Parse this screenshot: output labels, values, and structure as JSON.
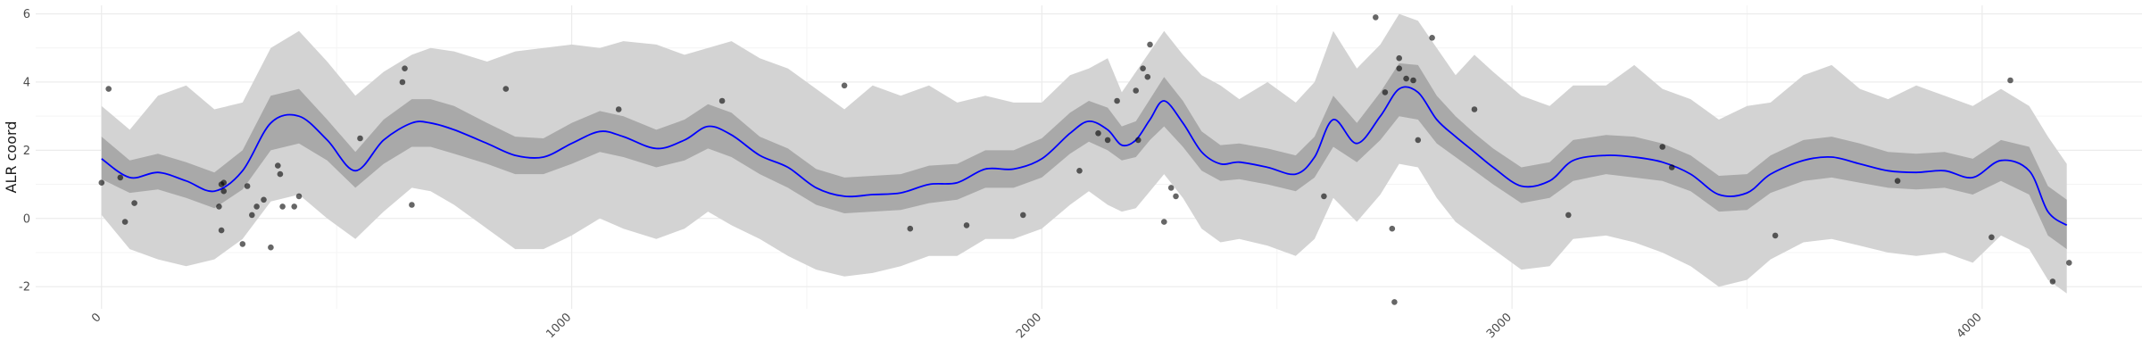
{
  "chart_data": {
    "type": "line",
    "title": "",
    "xlabel": "",
    "ylabel": "ALR coord",
    "xlim": [
      -140,
      4340
    ],
    "ylim": [
      -2.65,
      6.25
    ],
    "x_ticks": [
      0,
      1000,
      2000,
      3000,
      4000
    ],
    "x_tick_labels": [
      "0",
      "1000",
      "2000",
      "3000",
      "4000"
    ],
    "y_ticks": [
      -2,
      0,
      2,
      4,
      6
    ],
    "y_tick_labels": [
      "-2",
      "0",
      "2",
      "4",
      "6"
    ],
    "x_minor_ticks": [
      500,
      1500,
      2500,
      3500
    ],
    "y_minor_ticks": [
      -1,
      1,
      3,
      5
    ],
    "grid": true,
    "legend": "none",
    "colors": {
      "line": "#0000ff",
      "inner_band": "#a9a9a9",
      "outer_band": "#d3d3d3",
      "points": "#000000",
      "grid_major": "#ebebeb",
      "grid_minor": "#f4f4f4"
    },
    "series": [
      {
        "kind": "smooth_line",
        "x": [
          0,
          60,
          120,
          180,
          240,
          300,
          360,
          420,
          480,
          540,
          600,
          660,
          700,
          750,
          820,
          880,
          940,
          1000,
          1060,
          1110,
          1180,
          1240,
          1290,
          1340,
          1400,
          1460,
          1520,
          1580,
          1640,
          1700,
          1760,
          1820,
          1880,
          1940,
          2000,
          2060,
          2100,
          2140,
          2170,
          2200,
          2230,
          2260,
          2300,
          2340,
          2380,
          2420,
          2480,
          2540,
          2580,
          2620,
          2670,
          2720,
          2760,
          2800,
          2840,
          2880,
          2920,
          2960,
          3020,
          3080,
          3130,
          3200,
          3260,
          3320,
          3380,
          3440,
          3500,
          3550,
          3620,
          3680,
          3740,
          3800,
          3860,
          3920,
          3980,
          4040,
          4100,
          4140,
          4180
        ],
        "y": [
          1.75,
          1.2,
          1.35,
          1.1,
          0.8,
          1.4,
          2.8,
          3.0,
          2.3,
          1.4,
          2.3,
          2.8,
          2.8,
          2.6,
          2.2,
          1.85,
          1.8,
          2.2,
          2.55,
          2.4,
          2.05,
          2.3,
          2.7,
          2.45,
          1.85,
          1.5,
          0.9,
          0.65,
          0.7,
          0.75,
          1.0,
          1.05,
          1.45,
          1.45,
          1.75,
          2.5,
          2.85,
          2.6,
          2.15,
          2.3,
          2.9,
          3.45,
          2.8,
          1.95,
          1.6,
          1.65,
          1.5,
          1.3,
          1.8,
          2.9,
          2.2,
          3.0,
          3.8,
          3.7,
          2.9,
          2.4,
          1.95,
          1.5,
          0.95,
          1.1,
          1.7,
          1.85,
          1.8,
          1.65,
          1.3,
          0.7,
          0.75,
          1.3,
          1.7,
          1.8,
          1.6,
          1.4,
          1.35,
          1.4,
          1.2,
          1.7,
          1.4,
          0.2,
          -0.2
        ]
      },
      {
        "kind": "inner_band",
        "x": [
          0,
          60,
          120,
          180,
          240,
          300,
          360,
          420,
          480,
          540,
          600,
          660,
          700,
          750,
          820,
          880,
          940,
          1000,
          1060,
          1110,
          1180,
          1240,
          1290,
          1340,
          1400,
          1460,
          1520,
          1580,
          1640,
          1700,
          1760,
          1820,
          1880,
          1940,
          2000,
          2060,
          2100,
          2140,
          2170,
          2200,
          2230,
          2260,
          2300,
          2340,
          2380,
          2420,
          2480,
          2540,
          2580,
          2620,
          2670,
          2720,
          2760,
          2800,
          2840,
          2880,
          2920,
          2960,
          3020,
          3080,
          3130,
          3200,
          3260,
          3320,
          3380,
          3440,
          3500,
          3550,
          3620,
          3680,
          3740,
          3800,
          3860,
          3920,
          3980,
          4040,
          4100,
          4140,
          4180
        ],
        "lower": [
          1.15,
          0.75,
          0.85,
          0.6,
          0.3,
          0.85,
          2.0,
          2.2,
          1.7,
          0.9,
          1.6,
          2.1,
          2.1,
          1.9,
          1.6,
          1.3,
          1.3,
          1.6,
          1.95,
          1.8,
          1.5,
          1.7,
          2.05,
          1.8,
          1.3,
          0.9,
          0.4,
          0.15,
          0.2,
          0.25,
          0.45,
          0.55,
          0.9,
          0.9,
          1.2,
          1.9,
          2.25,
          2.0,
          1.7,
          1.8,
          2.3,
          2.7,
          2.1,
          1.4,
          1.1,
          1.15,
          1.0,
          0.8,
          1.2,
          2.1,
          1.65,
          2.3,
          3.0,
          2.9,
          2.2,
          1.8,
          1.4,
          1.0,
          0.45,
          0.6,
          1.1,
          1.3,
          1.2,
          1.1,
          0.8,
          0.2,
          0.25,
          0.75,
          1.1,
          1.2,
          1.05,
          0.9,
          0.85,
          0.9,
          0.7,
          1.1,
          0.7,
          -0.5,
          -0.9
        ],
        "upper": [
          2.4,
          1.7,
          1.9,
          1.65,
          1.35,
          2.0,
          3.6,
          3.8,
          2.9,
          1.95,
          2.9,
          3.5,
          3.5,
          3.3,
          2.8,
          2.4,
          2.35,
          2.8,
          3.15,
          3.0,
          2.6,
          2.9,
          3.35,
          3.1,
          2.4,
          2.05,
          1.45,
          1.2,
          1.25,
          1.3,
          1.55,
          1.6,
          2.0,
          2.0,
          2.35,
          3.1,
          3.45,
          3.25,
          2.7,
          2.85,
          3.5,
          4.15,
          3.45,
          2.55,
          2.15,
          2.2,
          2.05,
          1.85,
          2.4,
          3.6,
          2.8,
          3.7,
          4.55,
          4.5,
          3.6,
          3.0,
          2.5,
          2.05,
          1.5,
          1.65,
          2.3,
          2.45,
          2.4,
          2.2,
          1.85,
          1.25,
          1.3,
          1.85,
          2.3,
          2.4,
          2.2,
          1.95,
          1.9,
          1.95,
          1.75,
          2.3,
          2.1,
          0.95,
          0.55
        ]
      },
      {
        "kind": "outer_band",
        "x": [
          0,
          60,
          120,
          180,
          240,
          300,
          360,
          420,
          480,
          540,
          600,
          660,
          700,
          750,
          820,
          880,
          940,
          1000,
          1060,
          1110,
          1180,
          1240,
          1290,
          1340,
          1400,
          1460,
          1520,
          1580,
          1640,
          1700,
          1760,
          1820,
          1880,
          1940,
          2000,
          2060,
          2100,
          2140,
          2170,
          2200,
          2230,
          2260,
          2300,
          2340,
          2380,
          2420,
          2480,
          2540,
          2580,
          2620,
          2670,
          2720,
          2760,
          2800,
          2840,
          2880,
          2920,
          2960,
          3020,
          3080,
          3130,
          3200,
          3260,
          3320,
          3380,
          3440,
          3500,
          3550,
          3620,
          3680,
          3740,
          3800,
          3860,
          3920,
          3980,
          4040,
          4100,
          4140,
          4180
        ],
        "lower": [
          0.1,
          -0.9,
          -1.2,
          -1.4,
          -1.2,
          -0.6,
          0.5,
          0.7,
          0.0,
          -0.6,
          0.2,
          0.9,
          0.8,
          0.4,
          -0.3,
          -0.9,
          -0.9,
          -0.5,
          0.0,
          -0.3,
          -0.6,
          -0.3,
          0.2,
          -0.2,
          -0.6,
          -1.1,
          -1.5,
          -1.7,
          -1.6,
          -1.4,
          -1.1,
          -1.1,
          -0.6,
          -0.6,
          -0.3,
          0.4,
          0.8,
          0.4,
          0.2,
          0.3,
          0.8,
          1.3,
          0.6,
          -0.3,
          -0.7,
          -0.6,
          -0.8,
          -1.1,
          -0.6,
          0.6,
          -0.1,
          0.7,
          1.6,
          1.5,
          0.6,
          -0.1,
          -0.5,
          -0.9,
          -1.5,
          -1.4,
          -0.6,
          -0.5,
          -0.7,
          -1.0,
          -1.4,
          -2.0,
          -1.8,
          -1.2,
          -0.7,
          -0.6,
          -0.8,
          -1.0,
          -1.1,
          -1.0,
          -1.3,
          -0.5,
          -0.9,
          -1.8,
          -2.2
        ],
        "upper": [
          3.3,
          2.6,
          3.6,
          3.9,
          3.2,
          3.4,
          5.0,
          5.5,
          4.6,
          3.6,
          4.3,
          4.8,
          5.0,
          4.9,
          4.6,
          4.9,
          5.0,
          5.1,
          5.0,
          5.2,
          5.1,
          4.8,
          5.0,
          5.2,
          4.7,
          4.4,
          3.8,
          3.2,
          3.9,
          3.6,
          3.9,
          3.4,
          3.6,
          3.4,
          3.4,
          4.2,
          4.4,
          4.7,
          3.7,
          4.3,
          4.9,
          5.5,
          4.8,
          4.2,
          3.9,
          3.5,
          4.0,
          3.4,
          4.0,
          5.5,
          4.4,
          5.1,
          6.0,
          5.8,
          5.0,
          4.2,
          4.8,
          4.3,
          3.6,
          3.3,
          3.9,
          3.9,
          4.5,
          3.8,
          3.5,
          2.9,
          3.3,
          3.4,
          4.2,
          4.5,
          3.8,
          3.5,
          3.9,
          3.6,
          3.3,
          3.8,
          3.3,
          2.4,
          1.6
        ]
      },
      {
        "kind": "points",
        "x": [
          0,
          15,
          40,
          50,
          70,
          250,
          255,
          255,
          260,
          260,
          300,
          310,
          320,
          330,
          345,
          360,
          375,
          380,
          385,
          410,
          420,
          550,
          640,
          645,
          660,
          860,
          1100,
          1320,
          1580,
          1720,
          1840,
          1960,
          2080,
          2120,
          2140,
          2160,
          2200,
          2205,
          2215,
          2225,
          2230,
          2260,
          2275,
          2285,
          2600,
          2710,
          2730,
          2745,
          2750,
          2760,
          2760,
          2775,
          2790,
          2800,
          2830,
          2920,
          3120,
          3320,
          3340,
          3560,
          3820,
          4020,
          4060,
          4150,
          4185
        ],
        "y": [
          1.05,
          3.8,
          1.2,
          -0.1,
          0.45,
          0.35,
          -0.35,
          1.0,
          1.05,
          0.8,
          -0.75,
          0.95,
          0.1,
          0.35,
          0.55,
          -0.85,
          1.55,
          1.3,
          0.35,
          0.35,
          0.65,
          2.35,
          4.0,
          4.4,
          0.4,
          3.8,
          3.2,
          3.45,
          3.9,
          -0.3,
          -0.2,
          0.1,
          1.4,
          2.5,
          2.3,
          3.45,
          3.75,
          2.3,
          4.4,
          4.15,
          5.1,
          -0.1,
          0.9,
          0.65,
          0.65,
          5.9,
          3.7,
          -0.3,
          -2.45,
          4.4,
          4.7,
          4.1,
          4.05,
          2.3,
          5.3,
          3.2,
          0.1,
          2.1,
          1.5,
          -0.5,
          1.1,
          -0.55,
          4.05,
          -1.85,
          -1.3
        ]
      }
    ]
  }
}
